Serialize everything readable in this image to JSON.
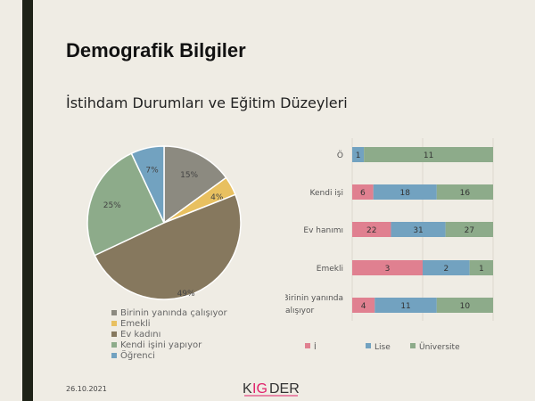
{
  "slide": {
    "title": "Demografik Bilgiler",
    "subtitle": "İstihdam Durumları ve Eğitim Düzeyleri",
    "date": "26.10.2021",
    "logo": "KIGDER"
  },
  "chart_data": [
    {
      "type": "pie",
      "categories": [
        "Birinin yanında çalışıyor",
        "Emekli",
        "Ev kadını",
        "Kendi işini yapıyor",
        "Öğrenci"
      ],
      "values": [
        15,
        4,
        49,
        25,
        7
      ],
      "labels": [
        "15%",
        "4%",
        "49%",
        "25%",
        "7%"
      ],
      "colors": [
        "#8c8a80",
        "#e8c060",
        "#86785e",
        "#8dab8a",
        "#72a2c0"
      ],
      "legend": "bottom"
    },
    {
      "type": "bar",
      "stacked": "percent",
      "orientation": "horizontal",
      "categories": [
        "Ö",
        "Kendi işi",
        "Ev hanımı",
        "Emekli",
        "Birinin yanında çalışıyor"
      ],
      "series": [
        {
          "name": "İ",
          "color": "#e08090",
          "values": [
            0,
            6,
            22,
            3,
            4
          ]
        },
        {
          "name": "Lise",
          "color": "#72a2c0",
          "values": [
            1,
            18,
            31,
            2,
            11
          ]
        },
        {
          "name": "Üniversite",
          "color": "#8dab8a",
          "values": [
            11,
            16,
            27,
            1,
            10
          ]
        }
      ],
      "legend": "bottom",
      "grid": true
    }
  ]
}
